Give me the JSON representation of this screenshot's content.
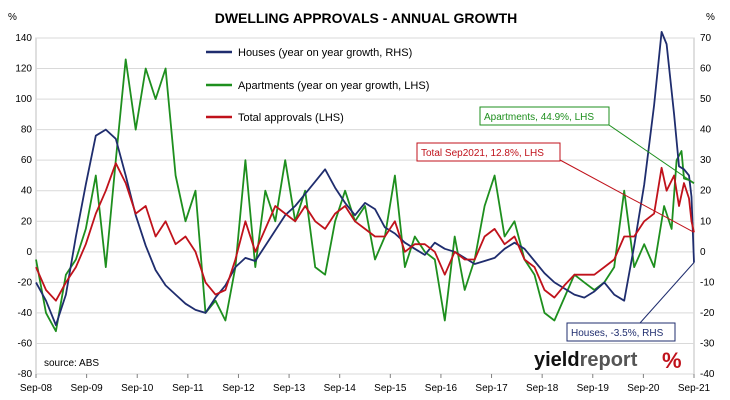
{
  "chart_data": {
    "type": "line",
    "title": "DWELLING APPROVALS - ANNUAL GROWTH",
    "left_axis_unit": "%",
    "right_axis_unit": "%",
    "ylim_left": [
      -80,
      140
    ],
    "yticks_left": [
      -80,
      -60,
      -40,
      -20,
      0,
      20,
      40,
      60,
      80,
      100,
      120,
      140
    ],
    "ylim_right": [
      -40,
      70
    ],
    "yticks_right": [
      -40,
      -30,
      -20,
      -10,
      0,
      10,
      20,
      30,
      40,
      50,
      60,
      70
    ],
    "x_ticks": [
      "Sep-08",
      "Sep-09",
      "Sep-10",
      "Sep-11",
      "Sep-12",
      "Sep-13",
      "Sep-14",
      "Sep-15",
      "Sep-16",
      "Sep-17",
      "Sep-18",
      "Sep-19",
      "Sep-20",
      "Sep-21"
    ],
    "grid": true,
    "legend_position": "top-center",
    "series": [
      {
        "name": "Houses (year on year growth, RHS)",
        "axis": "right",
        "color": "#1f2d6e",
        "points": [
          [
            2008.7,
            -10
          ],
          [
            2008.9,
            -16
          ],
          [
            2009.1,
            -24
          ],
          [
            2009.3,
            -14
          ],
          [
            2009.5,
            5
          ],
          [
            2009.7,
            22
          ],
          [
            2009.9,
            38
          ],
          [
            2010.1,
            40
          ],
          [
            2010.3,
            37
          ],
          [
            2010.5,
            25
          ],
          [
            2010.7,
            12
          ],
          [
            2010.9,
            2
          ],
          [
            2011.1,
            -6
          ],
          [
            2011.3,
            -11
          ],
          [
            2011.5,
            -14
          ],
          [
            2011.7,
            -17
          ],
          [
            2011.9,
            -19
          ],
          [
            2012.1,
            -20
          ],
          [
            2012.3,
            -15
          ],
          [
            2012.5,
            -11
          ],
          [
            2012.7,
            -5
          ],
          [
            2012.9,
            -2
          ],
          [
            2013.1,
            -3
          ],
          [
            2013.3,
            2
          ],
          [
            2013.5,
            7
          ],
          [
            2013.7,
            12
          ],
          [
            2013.9,
            15
          ],
          [
            2014.1,
            19
          ],
          [
            2014.3,
            23
          ],
          [
            2014.5,
            27
          ],
          [
            2014.7,
            21
          ],
          [
            2014.9,
            16
          ],
          [
            2015.1,
            12
          ],
          [
            2015.3,
            16
          ],
          [
            2015.5,
            14
          ],
          [
            2015.7,
            8
          ],
          [
            2015.9,
            6
          ],
          [
            2016.1,
            3
          ],
          [
            2016.3,
            1
          ],
          [
            2016.5,
            -1
          ],
          [
            2016.7,
            3
          ],
          [
            2016.9,
            1
          ],
          [
            2017.1,
            0
          ],
          [
            2017.3,
            -2
          ],
          [
            2017.5,
            -4
          ],
          [
            2017.7,
            -3
          ],
          [
            2017.9,
            -2
          ],
          [
            2018.1,
            1
          ],
          [
            2018.3,
            3
          ],
          [
            2018.5,
            1
          ],
          [
            2018.7,
            -3
          ],
          [
            2018.9,
            -7
          ],
          [
            2019.1,
            -10
          ],
          [
            2019.3,
            -12
          ],
          [
            2019.5,
            -14
          ],
          [
            2019.7,
            -15
          ],
          [
            2019.9,
            -13
          ],
          [
            2020.1,
            -10
          ],
          [
            2020.3,
            -14
          ],
          [
            2020.5,
            -16
          ],
          [
            2020.7,
            2
          ],
          [
            2020.9,
            22
          ],
          [
            2021.1,
            48
          ],
          [
            2021.25,
            72
          ],
          [
            2021.35,
            68
          ],
          [
            2021.5,
            45
          ],
          [
            2021.6,
            28
          ],
          [
            2021.7,
            27
          ],
          [
            2021.8,
            25
          ],
          [
            2021.85,
            18
          ],
          [
            2021.9,
            -3.5
          ]
        ]
      },
      {
        "name": "Apartments (year on year growth, LHS)",
        "axis": "left",
        "color": "#1e8f1e",
        "points": [
          [
            2008.7,
            -5
          ],
          [
            2008.9,
            -40
          ],
          [
            2009.1,
            -52
          ],
          [
            2009.3,
            -15
          ],
          [
            2009.5,
            -5
          ],
          [
            2009.7,
            15
          ],
          [
            2009.9,
            50
          ],
          [
            2010.1,
            -10
          ],
          [
            2010.3,
            60
          ],
          [
            2010.5,
            126
          ],
          [
            2010.7,
            80
          ],
          [
            2010.9,
            120
          ],
          [
            2011.1,
            100
          ],
          [
            2011.3,
            120
          ],
          [
            2011.5,
            50
          ],
          [
            2011.7,
            20
          ],
          [
            2011.9,
            40
          ],
          [
            2012.1,
            -40
          ],
          [
            2012.3,
            -32
          ],
          [
            2012.5,
            -45
          ],
          [
            2012.7,
            -10
          ],
          [
            2012.9,
            60
          ],
          [
            2013.1,
            -10
          ],
          [
            2013.3,
            40
          ],
          [
            2013.5,
            20
          ],
          [
            2013.7,
            60
          ],
          [
            2013.9,
            20
          ],
          [
            2014.1,
            40
          ],
          [
            2014.3,
            -10
          ],
          [
            2014.5,
            -15
          ],
          [
            2014.7,
            20
          ],
          [
            2014.9,
            40
          ],
          [
            2015.1,
            20
          ],
          [
            2015.3,
            30
          ],
          [
            2015.5,
            -5
          ],
          [
            2015.7,
            10
          ],
          [
            2015.9,
            50
          ],
          [
            2016.1,
            -10
          ],
          [
            2016.3,
            10
          ],
          [
            2016.5,
            0
          ],
          [
            2016.7,
            -5
          ],
          [
            2016.9,
            -45
          ],
          [
            2017.1,
            10
          ],
          [
            2017.3,
            -25
          ],
          [
            2017.5,
            -5
          ],
          [
            2017.7,
            30
          ],
          [
            2017.9,
            50
          ],
          [
            2018.1,
            10
          ],
          [
            2018.3,
            20
          ],
          [
            2018.5,
            -5
          ],
          [
            2018.7,
            -15
          ],
          [
            2018.9,
            -40
          ],
          [
            2019.1,
            -45
          ],
          [
            2019.3,
            -30
          ],
          [
            2019.5,
            -15
          ],
          [
            2019.7,
            -20
          ],
          [
            2019.9,
            -25
          ],
          [
            2020.1,
            -20
          ],
          [
            2020.3,
            -10
          ],
          [
            2020.5,
            40
          ],
          [
            2020.7,
            -10
          ],
          [
            2020.9,
            5
          ],
          [
            2021.1,
            -10
          ],
          [
            2021.3,
            30
          ],
          [
            2021.45,
            15
          ],
          [
            2021.55,
            60
          ],
          [
            2021.65,
            66
          ],
          [
            2021.7,
            48
          ],
          [
            2021.8,
            47
          ],
          [
            2021.9,
            44.9
          ]
        ]
      },
      {
        "name": "Total approvals (LHS)",
        "axis": "left",
        "color": "#c0121b",
        "points": [
          [
            2008.7,
            -10
          ],
          [
            2008.9,
            -25
          ],
          [
            2009.1,
            -32
          ],
          [
            2009.3,
            -20
          ],
          [
            2009.5,
            -10
          ],
          [
            2009.7,
            5
          ],
          [
            2009.9,
            25
          ],
          [
            2010.1,
            40
          ],
          [
            2010.3,
            58
          ],
          [
            2010.5,
            45
          ],
          [
            2010.7,
            25
          ],
          [
            2010.9,
            30
          ],
          [
            2011.1,
            10
          ],
          [
            2011.3,
            20
          ],
          [
            2011.5,
            5
          ],
          [
            2011.7,
            10
          ],
          [
            2011.9,
            0
          ],
          [
            2012.1,
            -20
          ],
          [
            2012.3,
            -28
          ],
          [
            2012.5,
            -25
          ],
          [
            2012.7,
            -5
          ],
          [
            2012.9,
            20
          ],
          [
            2013.1,
            0
          ],
          [
            2013.3,
            15
          ],
          [
            2013.5,
            30
          ],
          [
            2013.7,
            25
          ],
          [
            2013.9,
            20
          ],
          [
            2014.1,
            30
          ],
          [
            2014.3,
            20
          ],
          [
            2014.5,
            15
          ],
          [
            2014.7,
            25
          ],
          [
            2014.9,
            30
          ],
          [
            2015.1,
            20
          ],
          [
            2015.3,
            15
          ],
          [
            2015.5,
            10
          ],
          [
            2015.7,
            10
          ],
          [
            2015.9,
            20
          ],
          [
            2016.1,
            0
          ],
          [
            2016.3,
            5
          ],
          [
            2016.5,
            5
          ],
          [
            2016.7,
            0
          ],
          [
            2016.9,
            -15
          ],
          [
            2017.1,
            0
          ],
          [
            2017.3,
            -5
          ],
          [
            2017.5,
            -5
          ],
          [
            2017.7,
            10
          ],
          [
            2017.9,
            15
          ],
          [
            2018.1,
            5
          ],
          [
            2018.3,
            10
          ],
          [
            2018.5,
            -5
          ],
          [
            2018.7,
            -10
          ],
          [
            2018.9,
            -25
          ],
          [
            2019.1,
            -30
          ],
          [
            2019.3,
            -22
          ],
          [
            2019.5,
            -15
          ],
          [
            2019.7,
            -15
          ],
          [
            2019.9,
            -15
          ],
          [
            2020.1,
            -10
          ],
          [
            2020.3,
            -5
          ],
          [
            2020.5,
            10
          ],
          [
            2020.7,
            10
          ],
          [
            2020.9,
            20
          ],
          [
            2021.1,
            25
          ],
          [
            2021.25,
            55
          ],
          [
            2021.35,
            40
          ],
          [
            2021.5,
            50
          ],
          [
            2021.6,
            30
          ],
          [
            2021.7,
            45
          ],
          [
            2021.8,
            35
          ],
          [
            2021.85,
            20
          ],
          [
            2021.9,
            12.8
          ]
        ]
      }
    ],
    "annotations": [
      {
        "text": "Apartments, 44.9%, LHS",
        "color": "#1e8f1e",
        "series": 1
      },
      {
        "text": "Total Sep2021, 12.8%, LHS",
        "color": "#c0121b",
        "series": 2
      },
      {
        "text": "Houses, -3.5%, RHS",
        "color": "#1f2d6e",
        "series": 0
      }
    ],
    "source": "source: ABS",
    "logo": "yieldreport %"
  }
}
